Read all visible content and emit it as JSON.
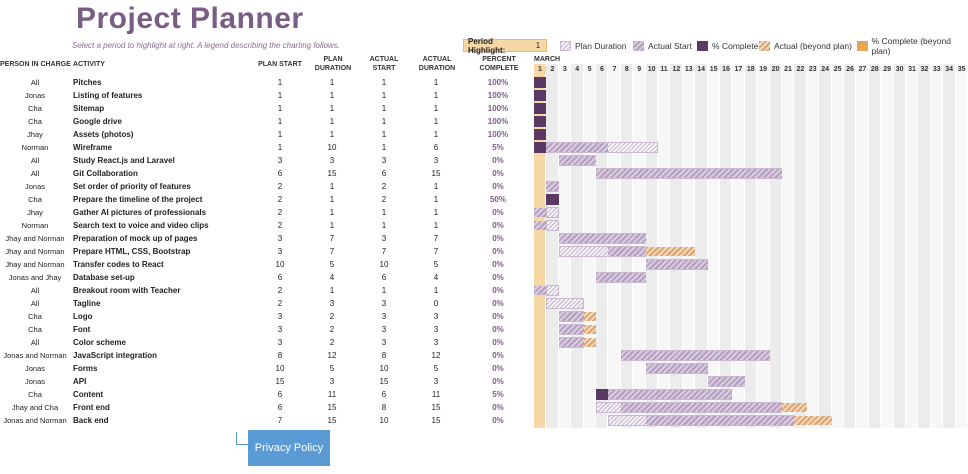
{
  "title": "Project Planner",
  "subtitle": "Select a period to highlight at right.  A legend describing the charting follows.",
  "period_highlight": {
    "label": "Period Highlight:",
    "value": "1"
  },
  "legend": {
    "plan_duration": "Plan Duration",
    "actual_start": "Actual Start",
    "percent_complete": "% Complete",
    "actual_beyond": "Actual (beyond plan)",
    "percent_beyond": "% Complete (beyond plan)"
  },
  "headers": {
    "person": "PERSON IN CHARGE",
    "activity": "ACTIVITY",
    "plan_start": "PLAN START",
    "plan_duration": "PLAN DURATION",
    "actual_start": "ACTUAL START",
    "actual_duration": "ACTUAL DURATION",
    "percent": "PERCENT COMPLETE",
    "month": "MARCH"
  },
  "colors": {
    "accent": "#7a5d84",
    "highlight": "#f8d7a6",
    "button": "#5b9bd5"
  },
  "days": [
    1,
    2,
    3,
    4,
    5,
    6,
    7,
    8,
    9,
    10,
    11,
    12,
    13,
    14,
    15,
    16,
    17,
    18,
    19,
    20,
    21,
    22,
    23,
    24,
    25,
    26,
    27,
    28,
    29,
    30,
    31,
    32,
    33,
    34,
    35
  ],
  "highlight_day": 1,
  "rows": [
    {
      "person": "All",
      "activity": "Pitches",
      "ps": 1,
      "pd": 1,
      "as": 1,
      "ad": 1,
      "pct": "100%"
    },
    {
      "person": "Jonas",
      "activity": "Listing of features",
      "ps": 1,
      "pd": 1,
      "as": 1,
      "ad": 1,
      "pct": "100%"
    },
    {
      "person": "Cha",
      "activity": "Sitemap",
      "ps": 1,
      "pd": 1,
      "as": 1,
      "ad": 1,
      "pct": "100%"
    },
    {
      "person": "Cha",
      "activity": "Google drive",
      "ps": 1,
      "pd": 1,
      "as": 1,
      "ad": 1,
      "pct": "100%"
    },
    {
      "person": "Jhay",
      "activity": "Assets (photos)",
      "ps": 1,
      "pd": 1,
      "as": 1,
      "ad": 1,
      "pct": "100%"
    },
    {
      "person": "Norman",
      "activity": "Wireframe",
      "ps": 1,
      "pd": 10,
      "as": 1,
      "ad": 6,
      "pct": "5%"
    },
    {
      "person": "All",
      "activity": "Study React.js and Laravel",
      "ps": 3,
      "pd": 3,
      "as": 3,
      "ad": 3,
      "pct": "0%"
    },
    {
      "person": "All",
      "activity": "Git Collaboration",
      "ps": 6,
      "pd": 15,
      "as": 6,
      "ad": 15,
      "pct": "0%"
    },
    {
      "person": "Jonas",
      "activity": "Set order of priority of features",
      "ps": 2,
      "pd": 1,
      "as": 2,
      "ad": 1,
      "pct": "0%"
    },
    {
      "person": "Cha",
      "activity": "Prepare the timeline of the project",
      "ps": 2,
      "pd": 1,
      "as": 2,
      "ad": 1,
      "pct": "50%"
    },
    {
      "person": "Jhay",
      "activity": "Gather AI pictures of professionals",
      "ps": 2,
      "pd": 1,
      "as": 1,
      "ad": 1,
      "pct": "0%"
    },
    {
      "person": "Norman",
      "activity": "Search text to voice and video clips",
      "ps": 2,
      "pd": 1,
      "as": 1,
      "ad": 1,
      "pct": "0%"
    },
    {
      "person": "Jhay and Norman",
      "activity": "Preparation of mock up of pages",
      "ps": 3,
      "pd": 7,
      "as": 3,
      "ad": 7,
      "pct": "0%"
    },
    {
      "person": "Jhay and Norman",
      "activity": "Prepare HTML, CSS, Bootstrap",
      "ps": 3,
      "pd": 7,
      "as": 7,
      "ad": 7,
      "pct": "0%"
    },
    {
      "person": "Jhay and Norman",
      "activity": "Transfer codes to React",
      "ps": 10,
      "pd": 5,
      "as": 10,
      "ad": 5,
      "pct": "0%"
    },
    {
      "person": "Jonas and Jhay",
      "activity": "Database set-up",
      "ps": 6,
      "pd": 4,
      "as": 6,
      "ad": 4,
      "pct": "0%"
    },
    {
      "person": "All",
      "activity": "Breakout room with Teacher",
      "ps": 2,
      "pd": 1,
      "as": 1,
      "ad": 1,
      "pct": "0%"
    },
    {
      "person": "All",
      "activity": "Tagline",
      "ps": 2,
      "pd": 3,
      "as": 3,
      "ad": 0,
      "pct": "0%"
    },
    {
      "person": "Cha",
      "activity": "Logo",
      "ps": 3,
      "pd": 2,
      "as": 3,
      "ad": 3,
      "pct": "0%"
    },
    {
      "person": "Cha",
      "activity": "Font",
      "ps": 3,
      "pd": 2,
      "as": 3,
      "ad": 3,
      "pct": "0%"
    },
    {
      "person": "All",
      "activity": "Color scheme",
      "ps": 3,
      "pd": 2,
      "as": 3,
      "ad": 3,
      "pct": "0%"
    },
    {
      "person": "Jonas and Norman",
      "activity": "JavaScript integration",
      "ps": 8,
      "pd": 12,
      "as": 8,
      "ad": 12,
      "pct": "0%"
    },
    {
      "person": "Jonas",
      "activity": "Forms",
      "ps": 10,
      "pd": 5,
      "as": 10,
      "ad": 5,
      "pct": "0%"
    },
    {
      "person": "Jonas",
      "activity": "API",
      "ps": 15,
      "pd": 3,
      "as": 15,
      "ad": 3,
      "pct": "0%"
    },
    {
      "person": "Cha",
      "activity": "Content",
      "ps": 6,
      "pd": 11,
      "as": 6,
      "ad": 11,
      "pct": "5%"
    },
    {
      "person": "Jhay and Cha",
      "activity": "Front end",
      "ps": 6,
      "pd": 15,
      "as": 8,
      "ad": 15,
      "pct": "0%"
    },
    {
      "person": "Jonas and Norman",
      "activity": "Back end",
      "ps": 7,
      "pd": 15,
      "as": 10,
      "ad": 15,
      "pct": "0%"
    }
  ],
  "privacy_button": "Privacy Policy"
}
